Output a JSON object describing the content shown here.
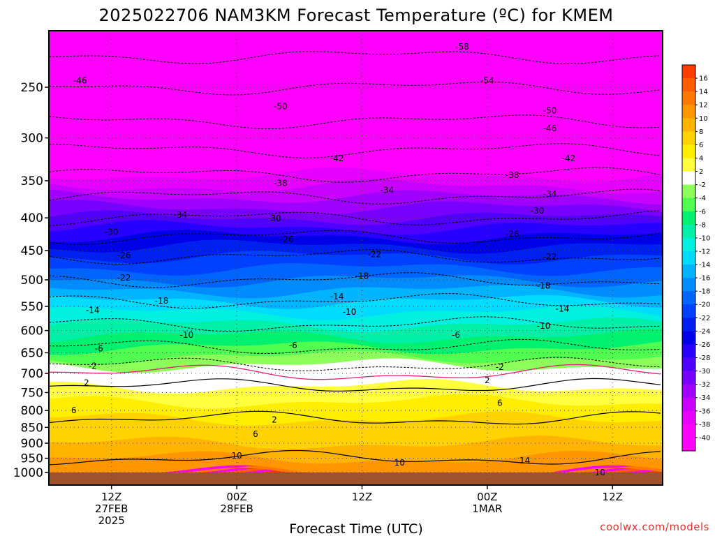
{
  "chart_data": {
    "type": "heatmap",
    "title": "2025022706 NAM3KM Forecast Temperature (ºC) for KMEM",
    "xlabel": "Forecast Time (UTC)",
    "ylabel": "",
    "credit": "coolwx.com/models",
    "y_scale": "log",
    "ylim": [
      1000,
      200
    ],
    "y_ticks": [
      250,
      300,
      350,
      400,
      450,
      500,
      550,
      600,
      650,
      700,
      750,
      800,
      850,
      900,
      950,
      1000
    ],
    "x_hours": [
      0,
      49
    ],
    "x_ticks": [
      {
        "hour": 5,
        "lines": [
          "12Z",
          "27FEB",
          "2025"
        ]
      },
      {
        "hour": 15,
        "lines": [
          "00Z",
          "28FEB"
        ]
      },
      {
        "hour": 25,
        "lines": [
          "12Z"
        ]
      },
      {
        "hour": 35,
        "lines": [
          "00Z",
          "1MAR"
        ]
      },
      {
        "hour": 45,
        "lines": [
          "12Z"
        ]
      }
    ],
    "grid": true,
    "legend": "colorbar-right",
    "colorbar": {
      "labels": [
        16,
        14,
        12,
        10,
        8,
        6,
        4,
        2,
        -2,
        -4,
        -6,
        -8,
        -10,
        -12,
        -14,
        -16,
        -18,
        -20,
        -22,
        -24,
        -26,
        -28,
        -30,
        -32,
        -34,
        -36,
        -38,
        -40
      ],
      "colors": [
        "#ff3c00",
        "#ff5a00",
        "#ff7800",
        "#ff9600",
        "#ffb400",
        "#ffd200",
        "#ffee00",
        "#ffff40",
        "#ffffff",
        "#8cff5a",
        "#50ff50",
        "#00f070",
        "#00f0a8",
        "#00f0e0",
        "#00dcff",
        "#00b4ff",
        "#008cff",
        "#0064ff",
        "#0040ff",
        "#0020f0",
        "#0000e8",
        "#2800ff",
        "#5000ff",
        "#7800ff",
        "#a000ff",
        "#c800ff",
        "#e600ff",
        "#ff00ff",
        "#ff00ff"
      ]
    },
    "contour_labels": [
      {
        "value": -58,
        "hour": 33,
        "p": 216
      },
      {
        "value": -54,
        "hour": 35,
        "p": 244
      },
      {
        "value": -46,
        "hour": 2.5,
        "p": 244
      },
      {
        "value": -50,
        "hour": 18.5,
        "p": 268
      },
      {
        "value": -50,
        "hour": 40,
        "p": 272
      },
      {
        "value": -46,
        "hour": 40,
        "p": 290
      },
      {
        "value": -42,
        "hour": 23,
        "p": 323
      },
      {
        "value": -42,
        "hour": 41.5,
        "p": 323
      },
      {
        "value": -38,
        "hour": 18.5,
        "p": 353
      },
      {
        "value": -38,
        "hour": 37,
        "p": 343
      },
      {
        "value": -34,
        "hour": 27,
        "p": 362
      },
      {
        "value": -34,
        "hour": 40,
        "p": 367
      },
      {
        "value": -34,
        "hour": 10.5,
        "p": 396
      },
      {
        "value": -30,
        "hour": 18,
        "p": 401
      },
      {
        "value": -30,
        "hour": 39,
        "p": 390
      },
      {
        "value": -30,
        "hour": 5,
        "p": 421
      },
      {
        "value": -26,
        "hour": 19,
        "p": 432
      },
      {
        "value": -26,
        "hour": 37,
        "p": 424
      },
      {
        "value": -26,
        "hour": 6,
        "p": 458
      },
      {
        "value": -22,
        "hour": 26,
        "p": 456
      },
      {
        "value": -22,
        "hour": 40,
        "p": 460
      },
      {
        "value": -22,
        "hour": 6,
        "p": 496
      },
      {
        "value": -18,
        "hour": 25,
        "p": 493
      },
      {
        "value": -18,
        "hour": 39.5,
        "p": 511
      },
      {
        "value": -18,
        "hour": 9,
        "p": 539
      },
      {
        "value": -14,
        "hour": 23,
        "p": 531
      },
      {
        "value": -14,
        "hour": 41,
        "p": 555
      },
      {
        "value": -14,
        "hour": 3.5,
        "p": 558
      },
      {
        "value": -10,
        "hour": 24,
        "p": 561
      },
      {
        "value": -10,
        "hour": 39.5,
        "p": 590
      },
      {
        "value": -10,
        "hour": 11,
        "p": 610
      },
      {
        "value": -6,
        "hour": 32.5,
        "p": 610
      },
      {
        "value": -6,
        "hour": 19.5,
        "p": 633
      },
      {
        "value": -6,
        "hour": 4,
        "p": 640
      },
      {
        "value": -2,
        "hour": 36,
        "p": 684
      },
      {
        "value": -2,
        "hour": 3.5,
        "p": 682
      },
      {
        "value": 2,
        "hour": 3,
        "p": 724
      },
      {
        "value": 2,
        "hour": 35,
        "p": 718
      },
      {
        "value": 2,
        "hour": 18,
        "p": 827
      },
      {
        "value": 6,
        "hour": 36,
        "p": 779
      },
      {
        "value": 6,
        "hour": 2,
        "p": 800
      },
      {
        "value": 6,
        "hour": 16.5,
        "p": 871
      },
      {
        "value": 10,
        "hour": 15,
        "p": 942
      },
      {
        "value": 10,
        "hour": 28,
        "p": 966
      },
      {
        "value": 14,
        "hour": 38,
        "p": 958
      },
      {
        "value": 10,
        "hour": 44,
        "p": 1000
      }
    ]
  }
}
